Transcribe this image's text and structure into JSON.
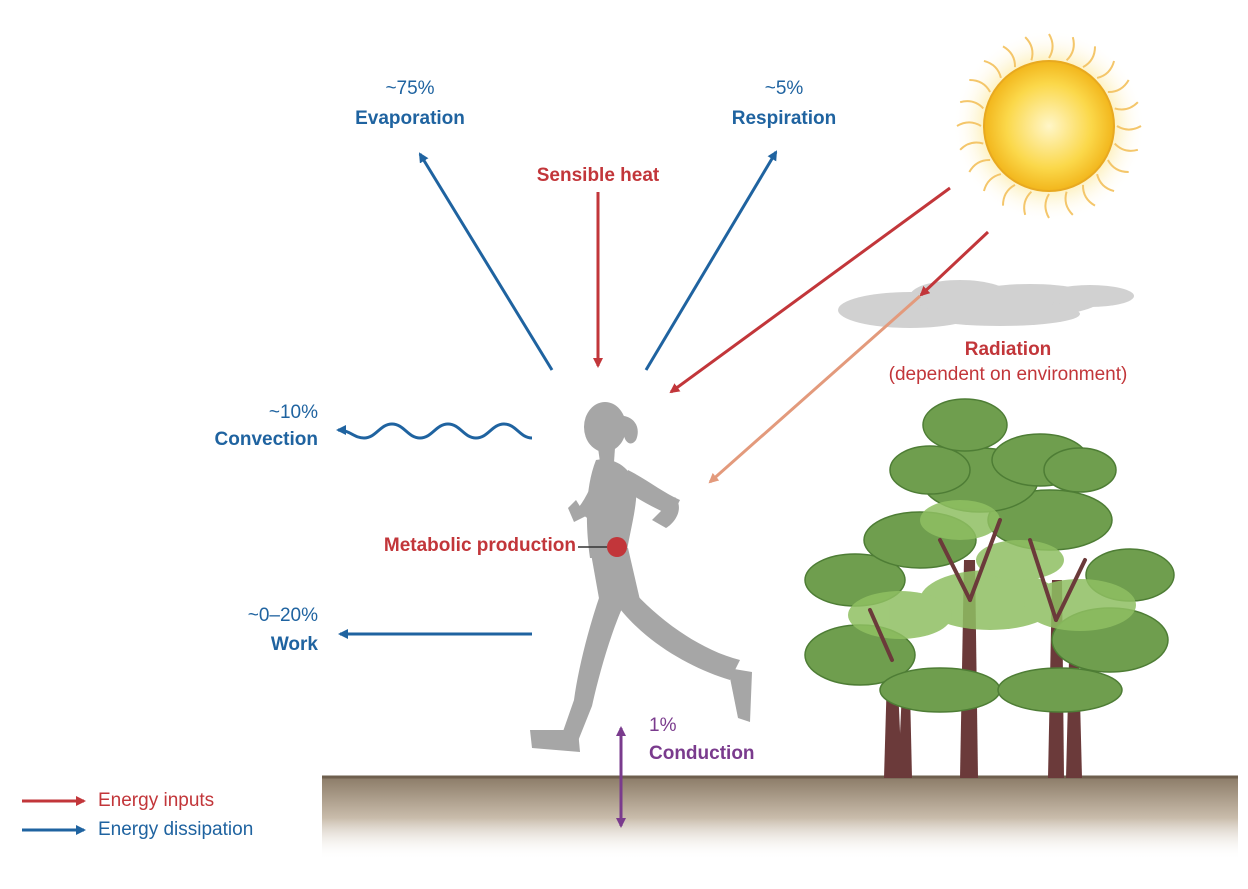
{
  "labels": {
    "evaporation": {
      "pct": "~75%",
      "name": "Evaporation"
    },
    "respiration": {
      "pct": "~5%",
      "name": "Respiration"
    },
    "sensible_heat": "Sensible heat",
    "radiation": {
      "name": "Radiation",
      "note": "(dependent on environment)"
    },
    "convection": {
      "pct": "~10%",
      "name": "Convection"
    },
    "metabolic": "Metabolic production",
    "work": {
      "pct": "~0–20%",
      "name": "Work"
    },
    "conduction": {
      "pct": "1%",
      "name": "Conduction"
    }
  },
  "legend": {
    "inputs": "Energy inputs",
    "dissipation": "Energy dissipation"
  },
  "colors": {
    "input": "#c2363a",
    "dissipation": "#1f63a0",
    "conduction": "#7a3b8d",
    "diffuse_radiation": "#e39a7c",
    "runner": "#a6a6a6",
    "sun": "#f7c51f",
    "ground": "#8f7f6b"
  },
  "icons": [
    "sun-icon",
    "cloud-icon",
    "runner-silhouette",
    "trees-icon",
    "ground"
  ]
}
